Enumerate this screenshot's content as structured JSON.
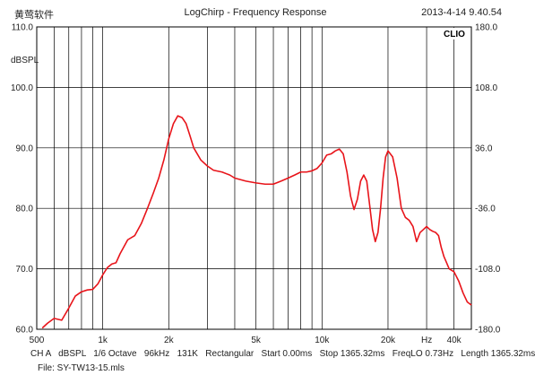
{
  "header": {
    "brand": "黄莺软件",
    "title": "LogChirp - Frequency Response",
    "timestamp": "2013-4-14 9.40.54"
  },
  "badge": "CLIO",
  "footer": {
    "line1": "CH A   dBSPL   1/6 Octave   96kHz   131K   Rectangular   Start 0.00ms   Stop 1365.32ms   FreqLO 0.73Hz   Length 1365.32ms",
    "line2": "File: SY-TW13-15.mls"
  },
  "colors": {
    "curve": "#e8141a",
    "grid": "#000000",
    "frame": "#000000"
  },
  "chart_data": {
    "type": "line",
    "title": "LogChirp - Frequency Response",
    "ylabel": "dBSPL",
    "xlabel": "Hz",
    "x_scale": "log",
    "xlim": [
      500,
      48000
    ],
    "ylim": [
      60,
      110
    ],
    "y2lim": [
      -180,
      180
    ],
    "grid": true,
    "y_ticks": [
      "110.0",
      "100.0",
      "90.0",
      "80.0",
      "70.0",
      "60.0"
    ],
    "y_tick_values": [
      110,
      100,
      90,
      80,
      70,
      60
    ],
    "y2_ticks": [
      "180.0",
      "108.0",
      "36.0",
      "-36.0",
      "-108.0",
      "-180.0"
    ],
    "y2_tick_values": [
      180,
      108,
      36,
      -36,
      -108,
      -180
    ],
    "x_ticks": [
      "500",
      "1k",
      "2k",
      "5k",
      "10k",
      "20k",
      "40k"
    ],
    "x_tick_values": [
      500,
      1000,
      2000,
      5000,
      10000,
      20000,
      40000
    ],
    "series": [
      {
        "x": [
          530,
          560,
          600,
          650,
          700,
          750,
          800,
          850,
          900,
          950,
          1000,
          1050,
          1100,
          1150,
          1200,
          1300,
          1400,
          1500,
          1600,
          1700,
          1800,
          1900,
          2000,
          2100,
          2200,
          2300,
          2400,
          2500,
          2600,
          2800,
          3000,
          3200,
          3500,
          3800,
          4000,
          4500,
          5000,
          5500,
          6000,
          6500,
          7000,
          7500,
          8000,
          8500,
          9000,
          9500,
          10000,
          10500,
          11000,
          11500,
          12000,
          12500,
          13000,
          13500,
          14000,
          14500,
          15000,
          15500,
          16000,
          16500,
          17000,
          17500,
          18000,
          18500,
          19000,
          19500,
          20000,
          21000,
          22000,
          23000,
          24000,
          25000,
          26000,
          27000,
          28000,
          29000,
          30000,
          31000,
          32000,
          33000,
          34000,
          35000,
          36000,
          37000,
          38000,
          40000,
          42000,
          44000,
          46000,
          48000
        ],
        "y": [
          60.2,
          61.0,
          61.8,
          61.5,
          63.5,
          65.5,
          66.2,
          66.5,
          66.6,
          67.5,
          69.0,
          70.2,
          70.8,
          71.0,
          72.5,
          74.8,
          75.5,
          77.5,
          80.0,
          82.5,
          85.0,
          88.0,
          91.5,
          94.0,
          95.3,
          95.0,
          94.0,
          92.0,
          90.0,
          88.0,
          87.0,
          86.3,
          86.0,
          85.5,
          85.0,
          84.5,
          84.2,
          84.0,
          84.0,
          84.5,
          85.0,
          85.5,
          86.0,
          86.0,
          86.2,
          86.6,
          87.5,
          88.8,
          89.0,
          89.5,
          89.8,
          89.0,
          86.0,
          82.0,
          79.8,
          81.5,
          84.5,
          85.5,
          84.5,
          80.5,
          76.5,
          74.5,
          76.0,
          80.0,
          85.0,
          88.5,
          89.5,
          88.5,
          85.0,
          80.0,
          78.5,
          78.0,
          77.0,
          74.5,
          76.0,
          76.5,
          77.0,
          76.5,
          76.2,
          76.0,
          75.5,
          73.5,
          72.0,
          71.0,
          70.0,
          69.5,
          68.0,
          66.0,
          64.5,
          64.0
        ]
      }
    ]
  }
}
